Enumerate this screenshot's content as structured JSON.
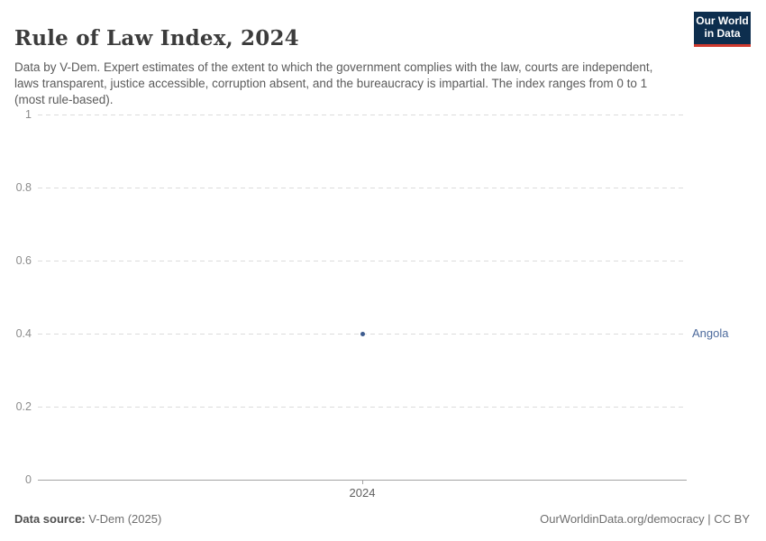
{
  "header": {
    "title": "Rule of Law Index, 2024",
    "subtitle": "Data by V-Dem. Expert estimates of the extent to which the government complies with the law, courts are independent, laws transparent, justice accessible, corruption absent, and the bureaucracy is impartial. The index ranges from 0 to 1 (most rule-based).",
    "logo": {
      "line1": "Our World",
      "line2": "in Data",
      "bg_color": "#0d2e4e",
      "accent_color": "#cf3a2e"
    }
  },
  "chart_data": {
    "type": "scatter",
    "title": "Rule of Law Index, 2024",
    "x": [
      2024
    ],
    "xticks": [
      "2024"
    ],
    "yticks": [
      0,
      0.2,
      0.4,
      0.6,
      0.8,
      1
    ],
    "ylim": [
      0,
      1
    ],
    "xlabel": "",
    "ylabel": "",
    "grid": "horizontal-dashed",
    "legend_position": "right-of-point",
    "series": [
      {
        "name": "Angola",
        "values": [
          0.4
        ],
        "color": "#4c6a9c",
        "dot_color": "#3d5c8f"
      }
    ]
  },
  "footer": {
    "source_label": "Data source:",
    "source_value": "V-Dem (2025)",
    "right_text": "OurWorldinData.org/democracy | CC BY"
  }
}
